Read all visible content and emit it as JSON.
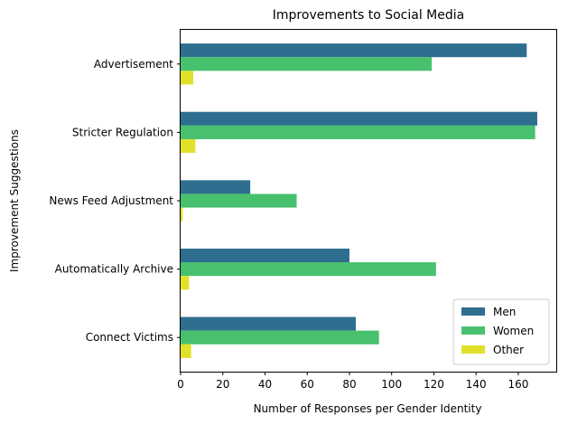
{
  "chart_data": {
    "type": "bar",
    "orientation": "horizontal",
    "title": "Improvements to Social Media",
    "xlabel": "Number of Responses per Gender Identity",
    "ylabel": "Improvement Suggestions",
    "categories": [
      "Advertisement",
      "Stricter Regulation",
      "News Feed Adjustment",
      "Automatically Archive",
      "Connect Victims"
    ],
    "series": [
      {
        "name": "Men",
        "color": "#2e6e8e",
        "values": [
          164,
          169,
          33,
          80,
          83
        ]
      },
      {
        "name": "Women",
        "color": "#48c16e",
        "values": [
          119,
          168,
          55,
          121,
          94
        ]
      },
      {
        "name": "Other",
        "color": "#e2e12a",
        "values": [
          6,
          7,
          1,
          4,
          5
        ]
      }
    ],
    "xlim": [
      0,
      178
    ],
    "xticks": [
      0,
      20,
      40,
      60,
      80,
      100,
      120,
      140,
      160
    ],
    "grid": false,
    "legend_position": "bottom-right"
  }
}
